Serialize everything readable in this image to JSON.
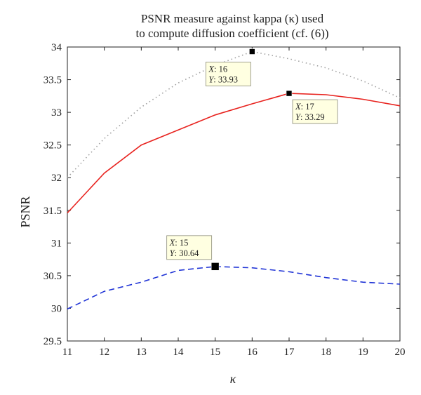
{
  "chart_data": {
    "type": "line",
    "title": [
      "PSNR measure against kappa (κ) used",
      "to compute diffusion coefficient (cf. (6))"
    ],
    "xlabel": "κ",
    "ylabel": "PSNR",
    "xlim": [
      11,
      20
    ],
    "ylim": [
      29.5,
      34
    ],
    "x_ticks": [
      "11",
      "12",
      "13",
      "14",
      "15",
      "16",
      "17",
      "18",
      "19",
      "20"
    ],
    "y_ticks": [
      "29.5",
      "30",
      "30.5",
      "31",
      "31.5",
      "32",
      "32.5",
      "33",
      "33.5",
      "34"
    ],
    "grid": false,
    "series": [
      {
        "style": "dotted",
        "color": "#a0a0a0",
        "x": [
          11,
          12,
          13,
          14,
          15,
          16,
          17,
          18,
          19,
          20
        ],
        "y": [
          32.0,
          32.6,
          33.08,
          33.45,
          33.72,
          33.93,
          33.82,
          33.68,
          33.48,
          33.22
        ]
      },
      {
        "style": "solid",
        "color": "#e8231f",
        "x": [
          11,
          12,
          13,
          14,
          15,
          16,
          17,
          18,
          19,
          20
        ],
        "y": [
          31.46,
          32.07,
          32.5,
          32.73,
          32.96,
          33.13,
          33.29,
          33.27,
          33.2,
          33.1
        ]
      },
      {
        "style": "dashed",
        "color": "#1f33d6",
        "x": [
          11,
          12,
          13,
          14,
          15,
          16,
          17,
          18,
          19,
          20
        ],
        "y": [
          29.99,
          30.26,
          30.4,
          30.58,
          30.64,
          30.62,
          30.56,
          30.47,
          30.4,
          30.37
        ]
      }
    ],
    "datatips": [
      {
        "x_label": "X",
        "x_value": "16",
        "y_label": "Y",
        "y_value": "33.93",
        "x": 16,
        "y": 33.93
      },
      {
        "x_label": "X",
        "x_value": "17",
        "y_label": "Y",
        "y_value": "33.29",
        "x": 17,
        "y": 33.29
      },
      {
        "x_label": "X",
        "x_value": "15",
        "y_label": "Y",
        "y_value": "30.64",
        "x": 15,
        "y": 30.64
      }
    ]
  }
}
